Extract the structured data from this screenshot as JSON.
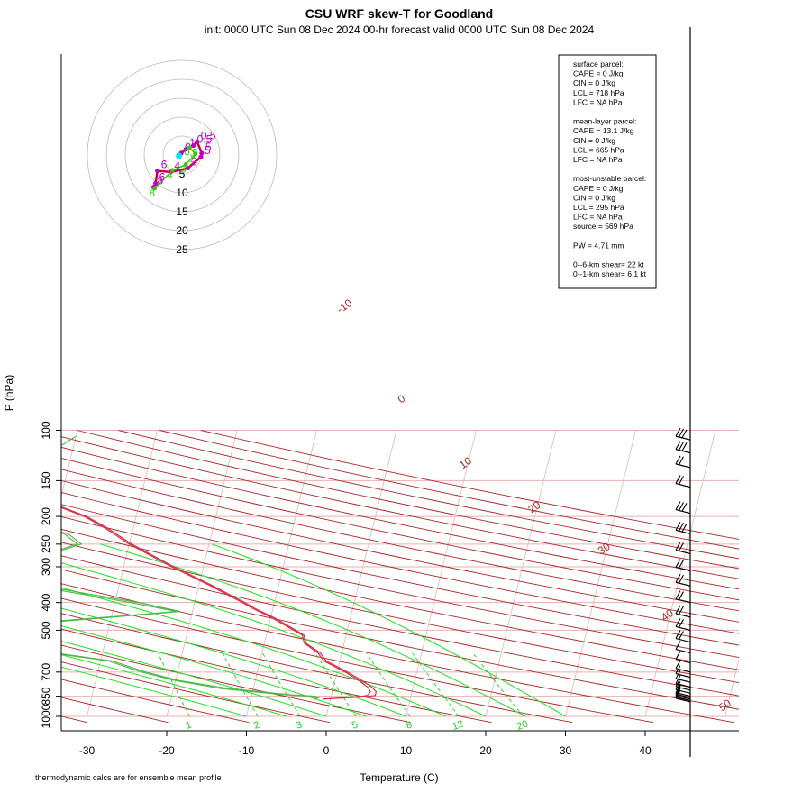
{
  "title": "CSU WRF skew-T for Goodland",
  "subtitle": "init: 0000 UTC Sun 08 Dec 2024     00-hr forecast valid 0000 UTC Sun 08 Dec 2024",
  "footnote": "thermodynamic calcs are for ensemble mean profile",
  "colors": {
    "temperature": "#d6314a",
    "dewpoint": "#4fb84a",
    "isotherm": "#a52a2a",
    "dry_adiabat": "#a52a2a",
    "moist_adiabat": "#22dd22",
    "mixing_ratio": "#22cc22",
    "isobar": "#e8b0b0",
    "hodo_magenta": "#c000c0",
    "hodo_green": "#33cc00"
  },
  "info_box": {
    "lines": [
      "surface parcel:",
      "CAPE = 0 J/kg",
      "CIN = 0 J/kg",
      "LCL = 718 hPa",
      "LFC = NA hPa",
      "",
      "mean-layer parcel:",
      "CAPE = 13.1 J/kg",
      "CIN = 0 J/kg",
      "LCL = 665 hPa",
      "LFC = NA hPa",
      "",
      "most-unstable parcel:",
      "CAPE = 0 J/kg",
      "CIN = 0 J/kg",
      "LCL = 295 hPa",
      "LFC = NA hPa",
      "source = 569 hPa",
      "",
      "PW =  4.71 mm",
      "",
      "0--6-km shear= 22 kt",
      "0--1-km shear= 6.1 kt"
    ]
  },
  "chart_data": {
    "type": "skew-T log-P",
    "xlabel": "Temperature (C)",
    "ylabel": "P (hPa)",
    "x_ticks": [
      -30,
      -20,
      -10,
      0,
      10,
      20,
      30,
      40
    ],
    "y_ticks": [
      100,
      150,
      200,
      250,
      300,
      400,
      500,
      700,
      850,
      1000
    ],
    "ylim": [
      1000,
      100
    ],
    "isotherm_labels": [
      -10,
      0,
      10,
      20,
      30,
      40,
      50
    ],
    "mixing_ratio_labels": [
      "1",
      "2",
      "3",
      "5",
      "8",
      "12",
      "20"
    ],
    "mixing_ratio_values": [
      1,
      2,
      3,
      5,
      8,
      12,
      20
    ],
    "dry_adiabats_theta_K": [
      230,
      240,
      250,
      260,
      270,
      280,
      290,
      300,
      310,
      320,
      330,
      340,
      350,
      360,
      370,
      380,
      390,
      400,
      410,
      420,
      430,
      440,
      450,
      460,
      470,
      480
    ],
    "moist_adiabats_thetaw_C": [
      -10,
      -5,
      0,
      5,
      10,
      15,
      20,
      25,
      30
    ],
    "temperature_profiles": [
      {
        "pressure": [
          870,
          855,
          845,
          820,
          790,
          750,
          700,
          640,
          600,
          555,
          520,
          480,
          450,
          420,
          400,
          350,
          300,
          250,
          220,
          200,
          185,
          170,
          160,
          145,
          130,
          115,
          106
        ],
        "temp": [
          -1.0,
          3.0,
          4.5,
          4.8,
          4.3,
          3.0,
          1.0,
          -2.0,
          -3.0,
          -5.0,
          -5.5,
          -8.0,
          -10.0,
          -12.5,
          -14.0,
          -18.5,
          -24.0,
          -30.0,
          -33.5,
          -36.5,
          -40.0,
          -45.5,
          -52.0,
          -55.0,
          -56.0,
          -56.5,
          -57.0
        ]
      },
      {
        "pressure": [
          870,
          855,
          845,
          820,
          790,
          750,
          700,
          640,
          600,
          555,
          520,
          480,
          450,
          420,
          400,
          350,
          300,
          250,
          220,
          200,
          185,
          170,
          160,
          145,
          130,
          115,
          106
        ],
        "temp": [
          -1.0,
          4.0,
          5.5,
          5.5,
          4.8,
          3.4,
          1.3,
          -1.7,
          -2.7,
          -4.8,
          -5.3,
          -7.7,
          -9.7,
          -12.2,
          -13.7,
          -18.2,
          -23.7,
          -29.7,
          -33.2,
          -36.2,
          -39.7,
          -45.2,
          -51.7,
          -54.7,
          -55.7,
          -56.2,
          -56.7
        ]
      }
    ],
    "dewpoint_profiles": [
      {
        "pressure": [
          870,
          860,
          850,
          840,
          800,
          750,
          700,
          680,
          640,
          600,
          555,
          520,
          470,
          430,
          400,
          360,
          330,
          300,
          270,
          250,
          230,
          210,
          195,
          180
        ],
        "dewpoint": [
          -2.0,
          -1.8,
          -2.5,
          -6.0,
          -14.0,
          -20.0,
          -24.5,
          -26.0,
          -29.0,
          -36.5,
          -44.0,
          -50.0,
          -39.0,
          -22.0,
          -28.0,
          -38.0,
          -54.0,
          -42.5,
          -39.5,
          -36.0,
          -38.0,
          -44.0,
          -48.5,
          -52.0
        ]
      },
      {
        "pressure": [
          870,
          860,
          850,
          840,
          800,
          750,
          700,
          680,
          640,
          600,
          555,
          520,
          470,
          430,
          400,
          360,
          330,
          300,
          270,
          250,
          230,
          210,
          195,
          180
        ],
        "dewpoint": [
          -2.0,
          -1.5,
          -2.0,
          -5.0,
          -13.0,
          -19.5,
          -24.0,
          -25.5,
          -28.5,
          -36.0,
          -43.5,
          -48.0,
          -38.0,
          -21.5,
          -27.0,
          -37.0,
          -50.0,
          -43.5,
          -40.0,
          -36.5,
          -38.5,
          -45.0,
          -49.5,
          -53.0
        ]
      },
      {
        "pressure": [
          105,
          118
        ],
        "dewpoint": [
          -40.0,
          -42.5
        ]
      }
    ],
    "wind_barbs": [
      {
        "pressure": 108,
        "barb": "---"
      },
      {
        "pressure": 120,
        "barb": "--/"
      },
      {
        "pressure": 135,
        "barb": "-/"
      },
      {
        "pressure": 158,
        "barb": "-/"
      },
      {
        "pressure": 195,
        "barb": "---"
      },
      {
        "pressure": 230,
        "barb": "---"
      },
      {
        "pressure": 270,
        "barb": "--"
      },
      {
        "pressure": 310,
        "barb": "--"
      },
      {
        "pressure": 350,
        "barb": "--"
      },
      {
        "pressure": 400,
        "barb": "--"
      },
      {
        "pressure": 450,
        "barb": "--"
      },
      {
        "pressure": 500,
        "barb": "--"
      },
      {
        "pressure": 550,
        "barb": "--"
      },
      {
        "pressure": 600,
        "barb": "-"
      },
      {
        "pressure": 650,
        "barb": "-"
      },
      {
        "pressure": 700,
        "barb": "-"
      },
      {
        "pressure": 730,
        "barb": "-"
      },
      {
        "pressure": 760,
        "barb": "-"
      },
      {
        "pressure": 790,
        "barb": "-"
      },
      {
        "pressure": 810,
        "barb": "-"
      },
      {
        "pressure": 830,
        "barb": "-"
      },
      {
        "pressure": 850,
        "barb": "-"
      },
      {
        "pressure": 860,
        "barb": "-"
      },
      {
        "pressure": 870,
        "barb": "-"
      },
      {
        "pressure": 880,
        "barb": "-"
      },
      {
        "pressure": 890,
        "barb": "-"
      }
    ],
    "hodograph": {
      "ring_labels": [
        "5",
        "10",
        "15",
        "20",
        "25"
      ],
      "ring_values": [
        5,
        10,
        15,
        20,
        25
      ],
      "magenta_points": [
        {
          "u": -0.2,
          "v": 0.5,
          "label": "0"
        },
        {
          "u": 1.0,
          "v": 1.5,
          "label": "1"
        },
        {
          "u": 3.0,
          "v": 2.5,
          "label": "0.5"
        },
        {
          "u": 4.0,
          "v": 3.5,
          "label": "0.5"
        },
        {
          "u": 5.2,
          "v": 0.5,
          "label": "5"
        },
        {
          "u": 5.0,
          "v": -0.5,
          "label": "5"
        },
        {
          "u": 1.5,
          "v": -3.5,
          "label": "3"
        },
        {
          "u": -3.0,
          "v": -4.5,
          "label": "4"
        },
        {
          "u": -6.5,
          "v": -4.2,
          "label": "6"
        },
        {
          "u": -7.0,
          "v": -7.5,
          "label": "6"
        },
        {
          "u": -7.5,
          "v": -8.5,
          "label": "8"
        }
      ],
      "green_points": [
        {
          "u": 2.0,
          "v": 2.0,
          "label": "0.5"
        },
        {
          "u": 3.5,
          "v": 0.2,
          "label": "2"
        },
        {
          "u": 1.0,
          "v": -2.5,
          "label": "3"
        },
        {
          "u": -2.5,
          "v": -4.0,
          "label": "4"
        },
        {
          "u": -7.2,
          "v": -8.8,
          "label": "8"
        }
      ],
      "cyan_point": {
        "u": -0.8,
        "v": -0.2
      }
    }
  }
}
